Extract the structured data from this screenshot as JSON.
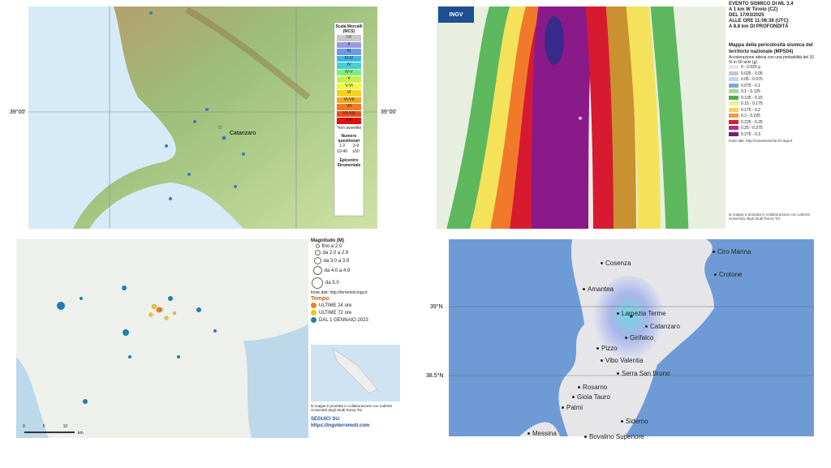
{
  "terrain_map": {
    "lat_left": "39°00'",
    "lat_right": "39°00'",
    "city": "Catanzaro",
    "legend": {
      "title": "Scala Mercalli (MCS)",
      "classes": [
        "I-II",
        "II",
        "III",
        "III-IV",
        "IV",
        "IV-V",
        "V",
        "V-VI",
        "VI",
        "VI-VII",
        "VII",
        "VII-VIII",
        "VIII"
      ],
      "note": "*non avvertito",
      "count_title": "Numero questionari",
      "counts": [
        "1-2",
        "3-9",
        "10-49",
        "≥50"
      ],
      "epicenter": "Epicentro Strumentale"
    }
  },
  "hazard_map": {
    "logo": "INGV",
    "event": [
      "EVENTO SISMICO DI ML 3.4",
      "A 1 km W Tiriolo (CZ)",
      "DEL 17/03/2025",
      "ALLE ORE 11:08:38 (UTC)",
      "A 8.8 km DI PROFONDITÀ"
    ],
    "title": "Mappa della pericolosità sismica del territorio nazionale (MPS04)",
    "subtitle": "Accelerazione attesa con una probabilità del 10 % in 50 anni (g)",
    "classes": [
      "0 - 0.025 g",
      "0.025 - 0.05",
      "0.05 - 0.075",
      "0.075 - 0.1",
      "0.1 - 0.125",
      "0.125 - 0.15",
      "0.15 - 0.175",
      "0.175 - 0.2",
      "0.2 - 0.225",
      "0.225 - 0.25",
      "0.25 - 0.275",
      "0.275 - 0.3"
    ],
    "source": "fonte dati: http://zonesismiche.mi.ingv.it",
    "credit": "la mappa è prodotta in collaborazione con LabGIS Università degli Studi Roma Tre"
  },
  "events_map": {
    "magnitude_title": "Magnitudo (M)",
    "magnitudes": [
      "fino a 2.0",
      "da 2.0 a 2.9",
      "da 3.0 a 3.9",
      "da 4.0 a 4.9",
      "da 5.0"
    ],
    "source": "fonte dati: http://terremoti.ingv.it",
    "time_title": "Tempo",
    "times": [
      "ULTIME 24 ore",
      "ULTIME 72 ore",
      "DAL 1 GENNAIO 2023"
    ],
    "credit": "la mappa è prodotta in collaborazione con LabGIS Università degli Studi Roma Tre",
    "follow": "SEGUICI SU:",
    "url": "https://ingvterremoti.com",
    "scale": [
      "0",
      "5",
      "10"
    ],
    "scale_unit": "km"
  },
  "shake_map": {
    "lat_labels": [
      "39°N",
      "38.5°N"
    ],
    "places": [
      "Cosenza",
      "Amantea",
      "Lamezia Terme",
      "Catanzaro",
      "Girifalco",
      "Pizzo",
      "Vibo Valentia",
      "Serra San Bruno",
      "Rosarno",
      "Gioia Tauro",
      "Palmi",
      "Siderno",
      "Messina",
      "Bovalino Superiore",
      "Ciro Marina",
      "Crotone"
    ]
  }
}
